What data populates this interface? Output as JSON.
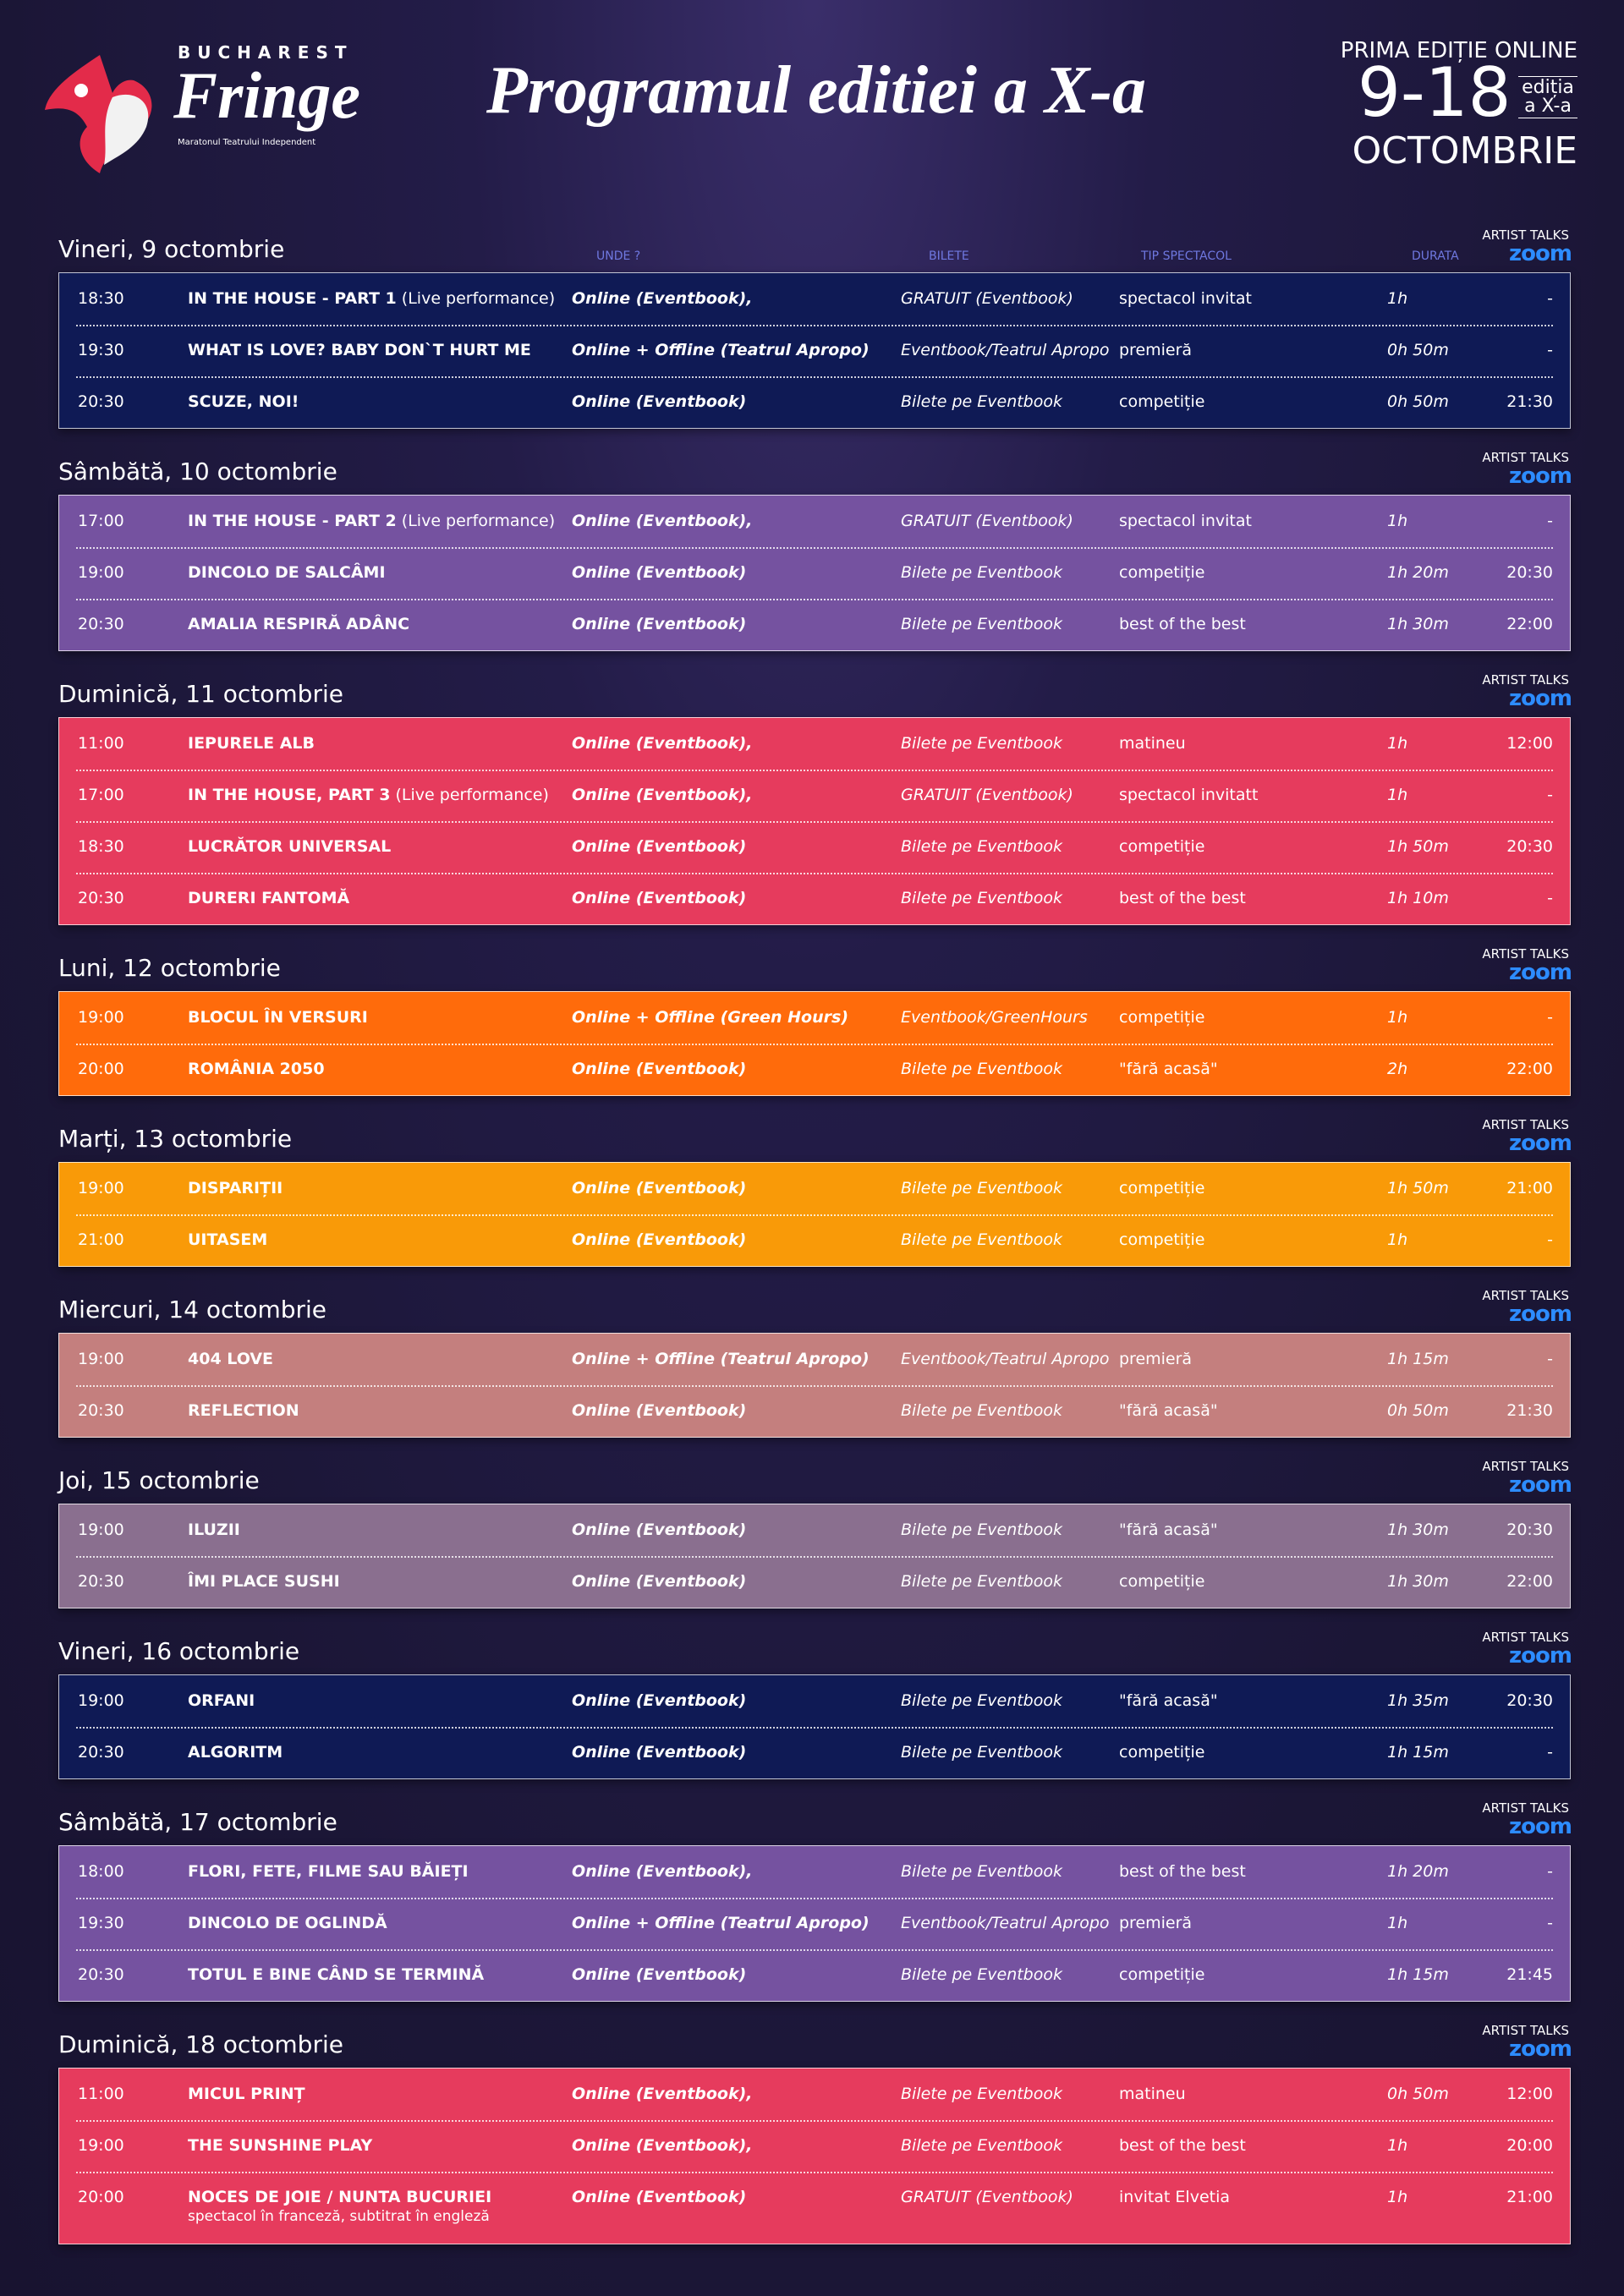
{
  "header": {
    "logo_top": "BUCHAREST",
    "logo_name": "Fringe",
    "logo_sub": "Maratonul Teatrului Independent",
    "title": "Programul editiei a X-a",
    "edition_online": "PRIMA EDIȚIE ONLINE",
    "dates": "9-18",
    "edition": "ediția a X-a",
    "month": "OCTOMBRIE"
  },
  "columns": {
    "where": "UNDE ?",
    "tickets": "BILETE",
    "type": "TIP SPECTACOL",
    "duration": "DURATA"
  },
  "talks_label": "ARTIST TALKS",
  "zoom_label": "zoom",
  "days": [
    {
      "date": "Vineri, 9 octombrie",
      "color": "#0f1a55",
      "rows": [
        {
          "time": "18:30",
          "title": "IN THE HOUSE - PART 1",
          "note": "(Live performance)",
          "where": "Online (Eventbook),",
          "tickets": "GRATUIT (Eventbook)",
          "type": "spectacol invitat",
          "duration": "1h",
          "talk": "-"
        },
        {
          "time": "19:30",
          "title": "WHAT IS LOVE? BABY DON`T HURT ME",
          "where": "Online + Offline (Teatrul Apropo)",
          "tickets": "Eventbook/Teatrul Apropo",
          "type": "premieră",
          "duration": "0h 50m",
          "talk": "-"
        },
        {
          "time": "20:30",
          "title": "SCUZE, NOI!",
          "where": "Online (Eventbook)",
          "tickets": "Bilete pe Eventbook",
          "type": "competiție",
          "duration": "0h 50m",
          "talk": "21:30"
        }
      ]
    },
    {
      "date": "Sâmbătă, 10 octombrie",
      "color": "#7552a0",
      "rows": [
        {
          "time": "17:00",
          "title": "IN THE HOUSE - PART 2",
          "note": "(Live performance)",
          "where": "Online (Eventbook),",
          "tickets": "GRATUIT (Eventbook)",
          "type": "spectacol invitat",
          "duration": "1h",
          "talk": "-"
        },
        {
          "time": "19:00",
          "title": "DINCOLO DE SALCÂMI",
          "where": "Online (Eventbook)",
          "tickets": "Bilete pe Eventbook",
          "type": "competiție",
          "duration": "1h 20m",
          "talk": "20:30"
        },
        {
          "time": "20:30",
          "title": "AMALIA RESPIRĂ ADÂNC",
          "where": "Online (Eventbook)",
          "tickets": "Bilete pe Eventbook",
          "type": "best of the best",
          "duration": "1h 30m",
          "talk": "22:00"
        }
      ]
    },
    {
      "date": "Duminică, 11 octombrie",
      "color": "#e63b5d",
      "rows": [
        {
          "time": "11:00",
          "title": "IEPURELE ALB",
          "where": "Online (Eventbook),",
          "tickets": "Bilete pe Eventbook",
          "type": "matineu",
          "duration": "1h",
          "talk": "12:00"
        },
        {
          "time": "17:00",
          "title": "IN THE HOUSE, PART 3",
          "note": "(Live performance)",
          "where": "Online (Eventbook),",
          "tickets": "GRATUIT (Eventbook)",
          "type": "spectacol invitatt",
          "duration": "1h",
          "talk": "-"
        },
        {
          "time": "18:30",
          "title": "LUCRĂTOR UNIVERSAL",
          "where": "Online (Eventbook)",
          "tickets": "Bilete pe Eventbook",
          "type": "competiție",
          "duration": "1h 50m",
          "talk": "20:30"
        },
        {
          "time": "20:30",
          "title": "DURERI FANTOMĂ",
          "where": "Online (Eventbook)",
          "tickets": "Bilete pe Eventbook",
          "type": "best of the best",
          "duration": "1h 10m",
          "talk": "-"
        }
      ]
    },
    {
      "date": "Luni, 12 octombrie",
      "color": "#ff6b0b",
      "rows": [
        {
          "time": "19:00",
          "title": "BLOCUL ÎN VERSURI",
          "where": "Online + Offline (Green Hours)",
          "tickets": "Eventbook/GreenHours",
          "type": "competiție",
          "duration": "1h",
          "talk": "-"
        },
        {
          "time": "20:00",
          "title": "ROMÂNIA 2050",
          "where": "Online (Eventbook)",
          "tickets": "Bilete pe Eventbook",
          "type": "\"fără acasă\"",
          "duration": "2h",
          "talk": "22:00"
        }
      ]
    },
    {
      "date": "Marți, 13 octombrie",
      "color": "#f99a08",
      "rows": [
        {
          "time": "19:00",
          "title": "DISPARIȚII",
          "where": "Online (Eventbook)",
          "tickets": "Bilete pe Eventbook",
          "type": "competiție",
          "duration": "1h 50m",
          "talk": "21:00"
        },
        {
          "time": "21:00",
          "title": "UITASEM",
          "where": "Online (Eventbook)",
          "tickets": "Bilete pe Eventbook",
          "type": "competiție",
          "duration": "1h",
          "talk": "-"
        }
      ]
    },
    {
      "date": "Miercuri, 14 octombrie",
      "color": "#c47f7e",
      "rows": [
        {
          "time": "19:00",
          "title": "404 LOVE",
          "where": "Online + Offline (Teatrul Apropo)",
          "tickets": "Eventbook/Teatrul Apropo",
          "type": "premieră",
          "duration": "1h 15m",
          "talk": "-"
        },
        {
          "time": "20:30",
          "title": "REFLECTION",
          "where": "Online (Eventbook)",
          "tickets": "Bilete pe Eventbook",
          "type": "\"fără acasă\"",
          "duration": "0h 50m",
          "talk": "21:30"
        }
      ]
    },
    {
      "date": "Joi, 15 octombrie",
      "color": "#8a6f8f",
      "rows": [
        {
          "time": "19:00",
          "title": "ILUZII",
          "where": "Online (Eventbook)",
          "tickets": "Bilete pe Eventbook",
          "type": "\"fără acasă\"",
          "duration": "1h 30m",
          "talk": "20:30"
        },
        {
          "time": "20:30",
          "title": "ÎMI PLACE SUSHI",
          "where": "Online (Eventbook)",
          "tickets": "Bilete pe Eventbook",
          "type": "competiție",
          "duration": "1h 30m",
          "talk": "22:00"
        }
      ]
    },
    {
      "date": "Vineri, 16 octombrie",
      "color": "#0f1a55",
      "rows": [
        {
          "time": "19:00",
          "title": "ORFANI",
          "where": "Online (Eventbook)",
          "tickets": "Bilete pe Eventbook",
          "type": "\"fără acasă\"",
          "duration": "1h 35m",
          "talk": "20:30"
        },
        {
          "time": "20:30",
          "title": "ALGORITM",
          "where": "Online (Eventbook)",
          "tickets": "Bilete pe Eventbook",
          "type": "competiție",
          "duration": "1h 15m",
          "talk": "-"
        }
      ]
    },
    {
      "date": "Sâmbătă, 17 octombrie",
      "color": "#7552a0",
      "rows": [
        {
          "time": "18:00",
          "title": "FLORI, FETE, FILME SAU BĂIEȚI",
          "where": "Online (Eventbook),",
          "tickets": "Bilete pe Eventbook",
          "type": "best of the best",
          "duration": "1h 20m",
          "talk": "-"
        },
        {
          "time": "19:30",
          "title": "DINCOLO DE OGLINDĂ",
          "where": "Online + Offline (Teatrul Apropo)",
          "tickets": "Eventbook/Teatrul Apropo",
          "type": "premieră",
          "duration": "1h",
          "talk": "-"
        },
        {
          "time": "20:30",
          "title": "TOTUL E BINE CÂND SE TERMINĂ",
          "where": "Online (Eventbook)",
          "tickets": "Bilete pe Eventbook",
          "type": "competiție",
          "duration": "1h 15m",
          "talk": "21:45"
        }
      ]
    },
    {
      "date": "Duminică, 18 octombrie",
      "color": "#e63b5d",
      "rows": [
        {
          "time": "11:00",
          "title": "MICUL PRINȚ",
          "where": "Online (Eventbook),",
          "tickets": "Bilete pe Eventbook",
          "type": "matineu",
          "duration": "0h 50m",
          "talk": "12:00"
        },
        {
          "time": "19:00",
          "title": "THE SUNSHINE PLAY",
          "where": "Online (Eventbook),",
          "tickets": "Bilete pe Eventbook",
          "type": "best of the best",
          "duration": "1h",
          "talk": "20:00"
        },
        {
          "time": "20:00",
          "title": "NOCES DE JOIE / NUNTA BUCURIEI",
          "subtitle": "spectacol în franceză, subtitrat în engleză",
          "where": "Online (Eventbook)",
          "tickets": "GRATUIT (Eventbook)",
          "type": "invitat Elvetia",
          "duration": "1h",
          "talk": "21:00"
        }
      ]
    }
  ]
}
